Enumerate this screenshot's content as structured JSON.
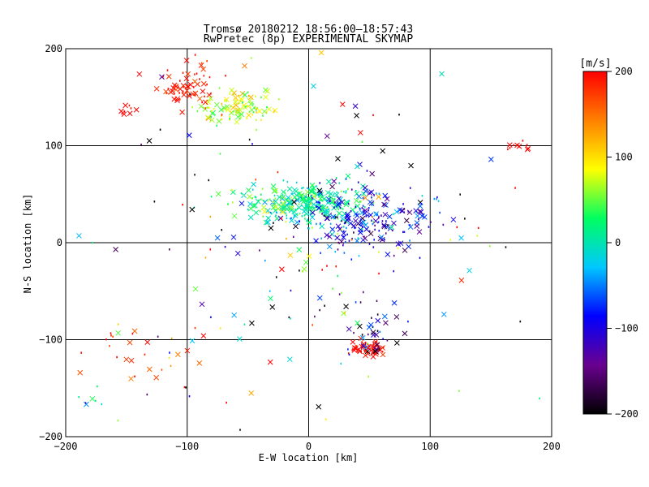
{
  "chart_data": {
    "type": "scatter",
    "title": "Tromsø 20180212 18:56:00–18:57:43",
    "subtitle": "RwPretec (8p) EXPERIMENTAL SKYMAP",
    "xlabel": "E-W location [km]",
    "ylabel": "N-S location [km]",
    "xlim": [
      -200,
      200
    ],
    "ylim": [
      -200,
      200
    ],
    "xticks": [
      -200,
      -100,
      0,
      100,
      200
    ],
    "yticks": [
      -200,
      -100,
      0,
      100,
      200
    ],
    "grid": true,
    "marker_types": [
      "x",
      "dot"
    ],
    "colorbar": {
      "label": "[m/s]",
      "range": [
        -200,
        200
      ],
      "ticks": [
        200,
        100,
        0,
        -100,
        -200
      ],
      "colormap": "rainbow",
      "colors": [
        "#000000",
        "#6a0090",
        "#0000ff",
        "#00c8ff",
        "#00ff60",
        "#ffff00",
        "#ff8000",
        "#ff0000"
      ]
    },
    "clusters": [
      {
        "x": -58,
        "y": 140,
        "sx": 15,
        "sy": 8,
        "n": 110,
        "v": 75,
        "vs": 25
      },
      {
        "x": -100,
        "y": 160,
        "sx": 14,
        "sy": 12,
        "n": 70,
        "v": 185,
        "vs": 15
      },
      {
        "x": -150,
        "y": 138,
        "sx": 5,
        "sy": 4,
        "n": 10,
        "v": 200,
        "vs": 5
      },
      {
        "x": 0,
        "y": 40,
        "sx": 22,
        "sy": 10,
        "n": 260,
        "v": 10,
        "vs": 25
      },
      {
        "x": 45,
        "y": 25,
        "sx": 28,
        "sy": 17,
        "n": 230,
        "v": -90,
        "vs": 45
      },
      {
        "x": -40,
        "y": 42,
        "sx": 18,
        "sy": 6,
        "n": 40,
        "v": 60,
        "vs": 35
      },
      {
        "x": 50,
        "y": -110,
        "sx": 8,
        "sy": 4,
        "n": 60,
        "v": 200,
        "vs": 12
      },
      {
        "x": 50,
        "y": -85,
        "sx": 15,
        "sy": 18,
        "n": 40,
        "v": -150,
        "vs": 70
      },
      {
        "x": 170,
        "y": 100,
        "sx": 6,
        "sy": 3,
        "n": 10,
        "v": 200,
        "vs": 5
      },
      {
        "x": -130,
        "y": -110,
        "sx": 30,
        "sy": 18,
        "n": 30,
        "v": 170,
        "vs": 40
      },
      {
        "x": -180,
        "y": -170,
        "sx": 6,
        "sy": 12,
        "n": 8,
        "v": 0,
        "vs": 40
      },
      {
        "x": 0,
        "y": 0,
        "sx": 95,
        "sy": 90,
        "n": 170,
        "v": 0,
        "vs": 170
      }
    ]
  }
}
